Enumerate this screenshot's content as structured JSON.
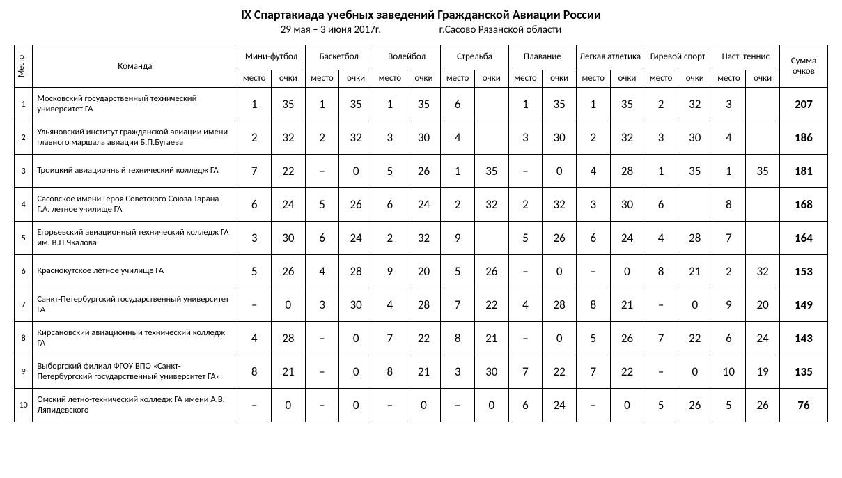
{
  "header": {
    "title": "IX Спартакиада учебных заведений Гражданской Авиации России",
    "dates": "29 мая – 3 июня 2017г.",
    "location": "г.Сасово Рязанской области"
  },
  "columns": {
    "place": "Место",
    "team": "Команда",
    "total": "Сумма очков",
    "sub_place": "место",
    "sub_points": "очки"
  },
  "sports": [
    "Мини-футбол",
    "Баскетбол",
    "Волейбол",
    "Стрельба",
    "Плавание",
    "Легкая атлетика",
    "Гиревой спорт",
    "Наст. теннис"
  ],
  "rows": [
    {
      "place": "1",
      "team": "Московский государственный технический университет ГА",
      "values": [
        "1",
        "35",
        "1",
        "35",
        "1",
        "35",
        "6",
        "",
        "1",
        "35",
        "1",
        "35",
        "2",
        "32",
        "3",
        ""
      ],
      "total": "207"
    },
    {
      "place": "2",
      "team": "Ульяновский институт гражданской авиации имени главного маршала авиации Б.П.Бугаева",
      "values": [
        "2",
        "32",
        "2",
        "32",
        "3",
        "30",
        "4",
        "",
        "3",
        "30",
        "2",
        "32",
        "3",
        "30",
        "4",
        ""
      ],
      "total": "186"
    },
    {
      "place": "3",
      "team": "Троицкий авиационный технический колледж ГА",
      "values": [
        "7",
        "22",
        "–",
        "0",
        "5",
        "26",
        "1",
        "35",
        "–",
        "0",
        "4",
        "28",
        "1",
        "35",
        "1",
        "35"
      ],
      "total": "181"
    },
    {
      "place": "4",
      "team": "Сасовское имени Героя Советского Союза Тарана Г.А. летное училище ГА",
      "values": [
        "6",
        "24",
        "5",
        "26",
        "6",
        "24",
        "2",
        "32",
        "2",
        "32",
        "3",
        "30",
        "6",
        "",
        "8",
        ""
      ],
      "total": "168"
    },
    {
      "place": "5",
      "team": "Егорьевский авиационный технический колледж ГА им. В.П.Чкалова",
      "values": [
        "3",
        "30",
        "6",
        "24",
        "2",
        "32",
        "9",
        "",
        "5",
        "26",
        "6",
        "24",
        "4",
        "28",
        "7",
        ""
      ],
      "total": "164"
    },
    {
      "place": "6",
      "team": "Краснокутское лётное училище ГА",
      "values": [
        "5",
        "26",
        "4",
        "28",
        "9",
        "20",
        "5",
        "26",
        "–",
        "0",
        "–",
        "0",
        "8",
        "21",
        "2",
        "32"
      ],
      "total": "153"
    },
    {
      "place": "7",
      "team": "Санкт-Петербургский государственный университет ГА",
      "values": [
        "–",
        "0",
        "3",
        "30",
        "4",
        "28",
        "7",
        "22",
        "4",
        "28",
        "8",
        "21",
        "–",
        "0",
        "9",
        "20"
      ],
      "total": "149"
    },
    {
      "place": "8",
      "team": "Кирсановский авиационный технический колледж ГА",
      "values": [
        "4",
        "28",
        "–",
        "0",
        "7",
        "22",
        "8",
        "21",
        "–",
        "0",
        "5",
        "26",
        "7",
        "22",
        "6",
        "24"
      ],
      "total": "143"
    },
    {
      "place": "9",
      "team": "Выборгский филиал ФГОУ ВПО «Санкт-Петербургский государственный университет ГА»",
      "values": [
        "8",
        "21",
        "–",
        "0",
        "8",
        "21",
        "3",
        "30",
        "7",
        "22",
        "7",
        "22",
        "–",
        "0",
        "10",
        "19"
      ],
      "total": "135"
    },
    {
      "place": "10",
      "team": "Омский летно-технический колледж ГА имени А.В. Ляпидевского",
      "values": [
        "–",
        "0",
        "–",
        "0",
        "–",
        "0",
        "–",
        "0",
        "6",
        "24",
        "–",
        "0",
        "5",
        "26",
        "5",
        "26"
      ],
      "total": "76"
    }
  ]
}
